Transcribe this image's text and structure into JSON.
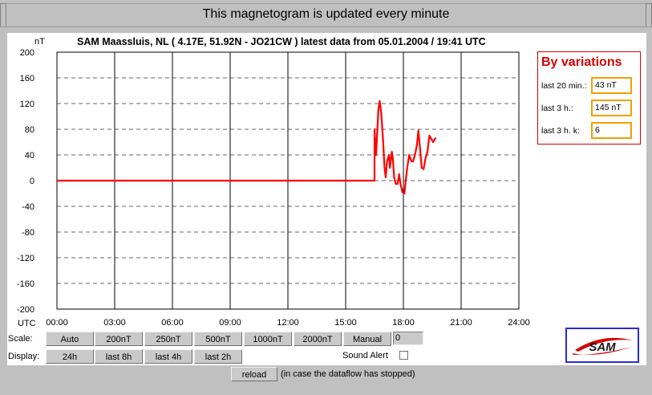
{
  "header": {
    "title": "This magnetogram is updated every minute"
  },
  "chart": {
    "title": "SAM Maassluis, NL ( 4.17E, 51.92N - JO21CW ) latest data from 05.01.2004 / 19:41 UTC",
    "ylabel": "nT",
    "xlabel": "UTC"
  },
  "chart_data": {
    "type": "line",
    "title": "SAM Maassluis, NL ( 4.17E, 51.92N - JO21CW ) latest data from 05.01.2004 / 19:41 UTC",
    "xlabel": "UTC",
    "ylabel": "nT",
    "x_ticks": [
      "00:00",
      "03:00",
      "06:00",
      "09:00",
      "12:00",
      "15:00",
      "18:00",
      "21:00",
      "24:00"
    ],
    "y_ticks": [
      "200",
      "160",
      "120",
      "80",
      "40",
      "0",
      "-40",
      "-80",
      "-120",
      "-160",
      "-200"
    ],
    "xlim": [
      0,
      24
    ],
    "ylim": [
      -200,
      200
    ],
    "grid": true,
    "series": [
      {
        "color": "#ff0000",
        "x": [
          0,
          16.5,
          16.5,
          16.58,
          16.7,
          16.77,
          16.85,
          16.95,
          17.02,
          17.08,
          17.15,
          17.25,
          17.3,
          17.4,
          17.45,
          17.52,
          17.6,
          17.7,
          17.78,
          17.85,
          17.95,
          18.05,
          18.12,
          18.2,
          18.3,
          18.42,
          18.5,
          18.6,
          18.7,
          18.78,
          18.85,
          18.95,
          19.05,
          19.15,
          19.25,
          19.35,
          19.45,
          19.55,
          19.68
        ],
        "y": [
          0,
          0,
          80,
          40,
          110,
          124,
          105,
          60,
          20,
          5,
          30,
          40,
          20,
          45,
          35,
          5,
          -5,
          -5,
          10,
          -5,
          -18,
          -20,
          0,
          20,
          40,
          30,
          30,
          40,
          55,
          78,
          55,
          20,
          18,
          35,
          45,
          70,
          65,
          60,
          67
        ]
      }
    ]
  },
  "variations": {
    "title": "By variations",
    "rows": [
      {
        "label": "last 20 min.:",
        "value": "43 nT"
      },
      {
        "label": "last 3 h.:",
        "value": "145 nT"
      },
      {
        "label": "last 3 h. k:",
        "value": "6"
      }
    ],
    "border_color": "#d40000",
    "value_border_color": "#f0a000"
  },
  "controls": {
    "scale_label": "Scale:",
    "display_label": "Display:",
    "scale_buttons": [
      "Auto",
      "200nT",
      "250nT",
      "500nT",
      "1000nT",
      "2000nT",
      "Manual"
    ],
    "manual_value": "0",
    "display_buttons": [
      "24h",
      "last 8h",
      "last 4h",
      "last 2h"
    ],
    "sound_alert_label": "Sound Alert",
    "sound_alert_checked": false
  },
  "footer": {
    "reload_label": "reload",
    "reload_note": "(in case the dataflow has stopped)"
  },
  "logo": {
    "text": "SAM",
    "icon": "sam-logo-icon"
  }
}
